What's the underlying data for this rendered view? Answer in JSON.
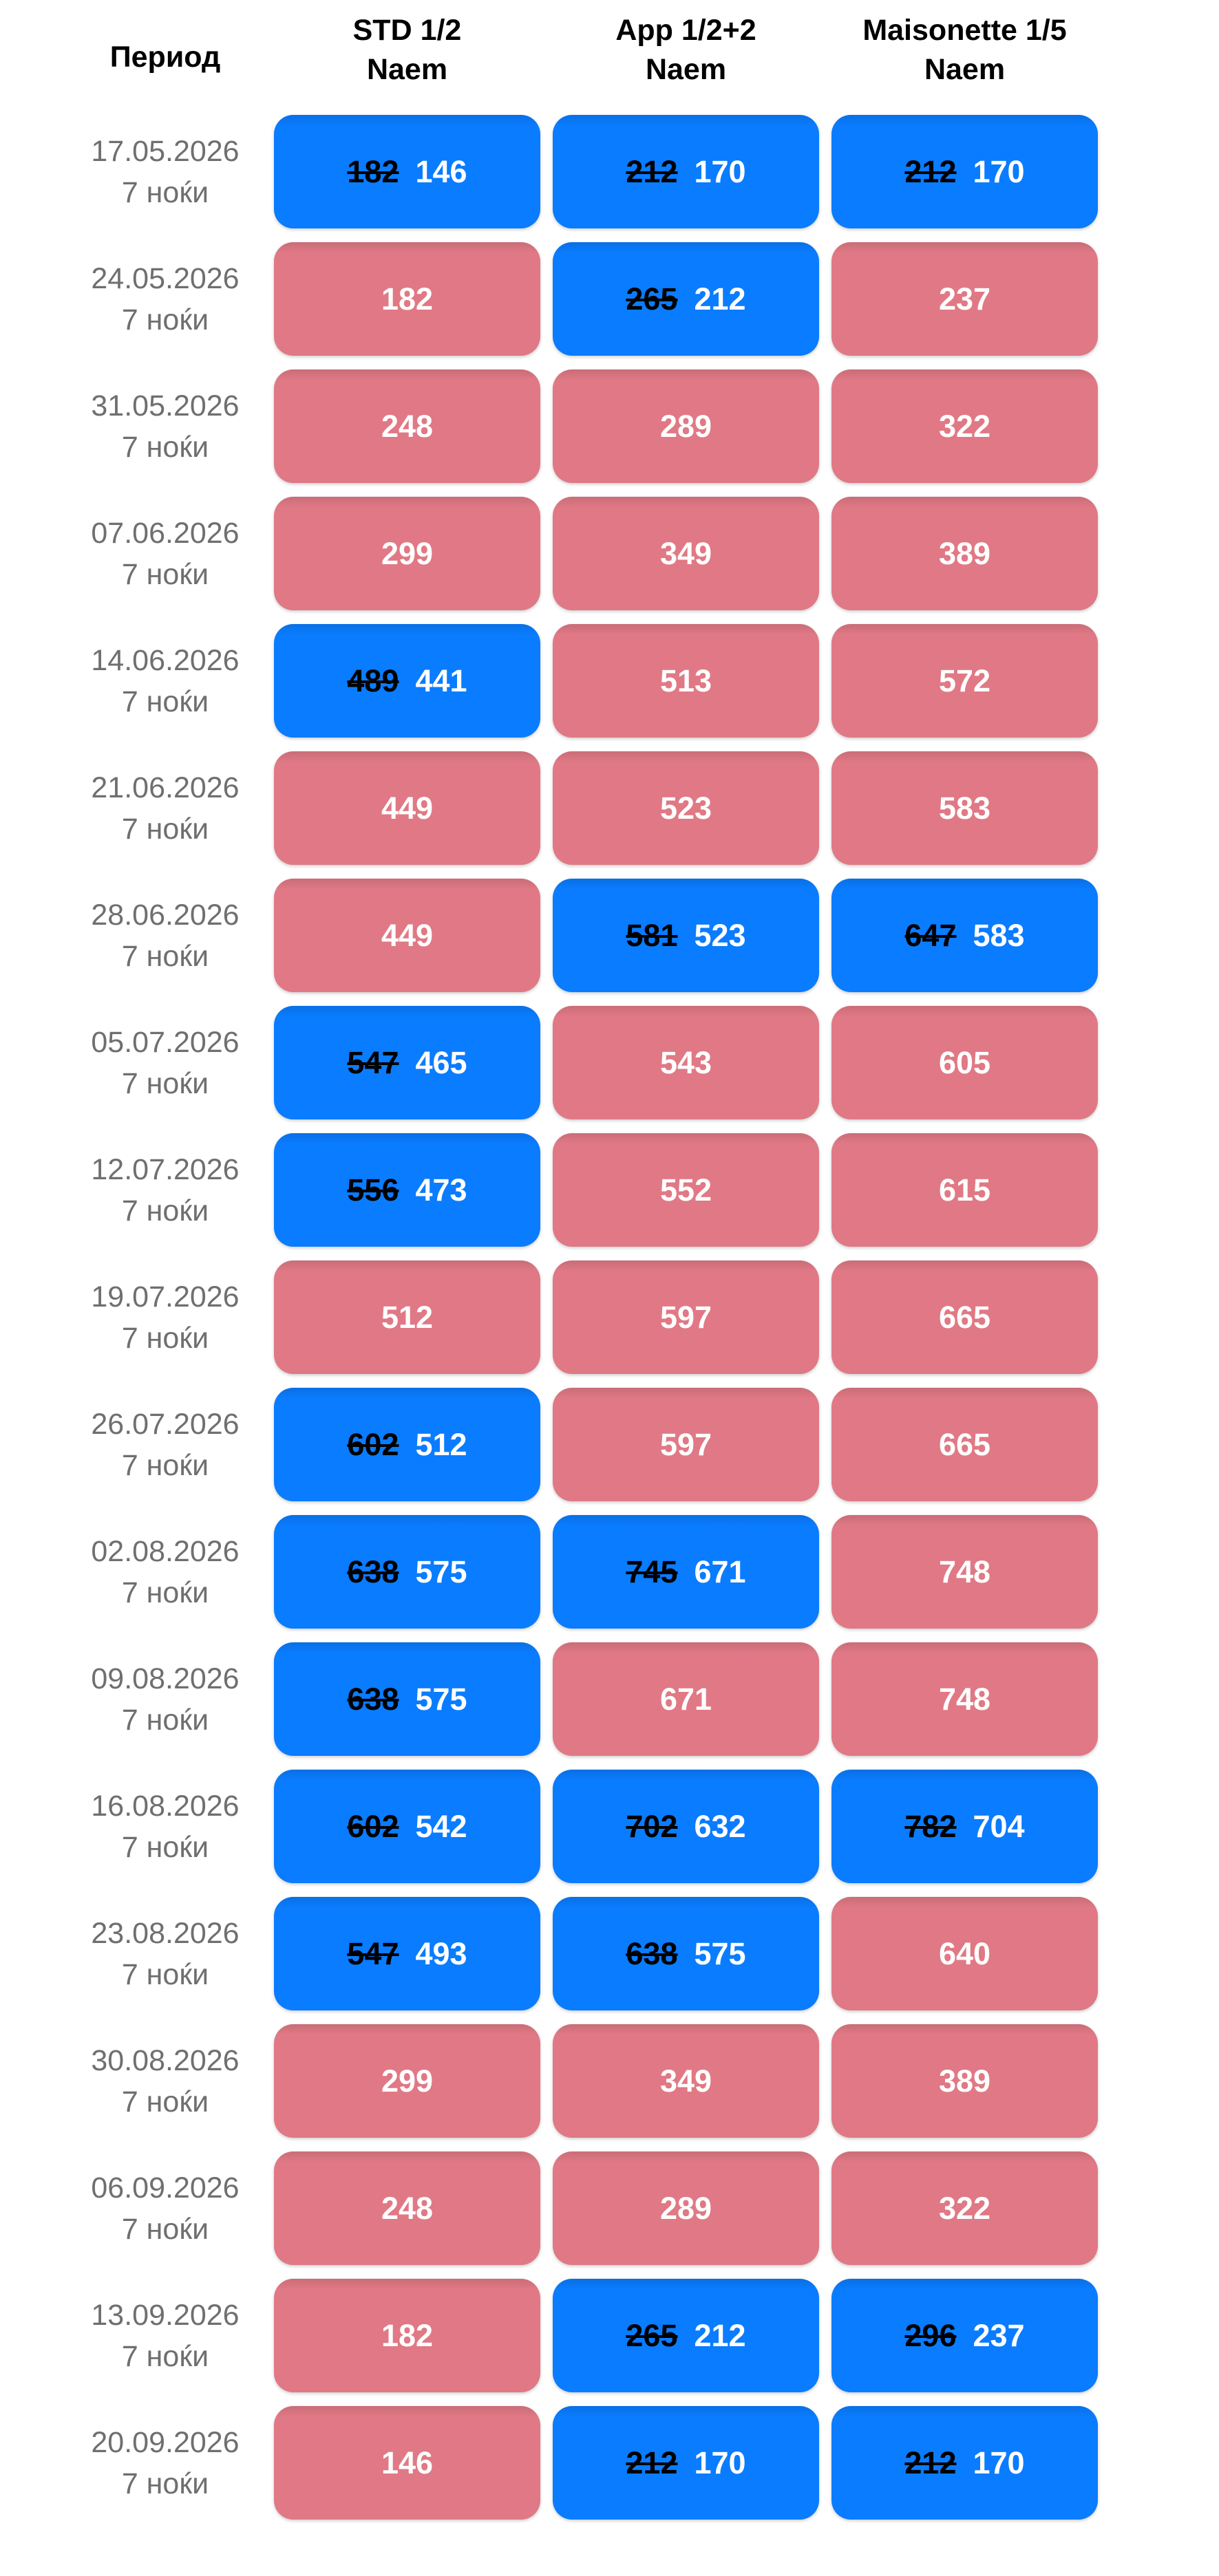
{
  "header": {
    "period_label": "Период",
    "columns": [
      {
        "title": "STD 1/2",
        "subtitle": "Naem"
      },
      {
        "title": "App 1/2+2",
        "subtitle": "Naem"
      },
      {
        "title": "Maisonette 1/5",
        "subtitle": "Naem"
      }
    ]
  },
  "colors": {
    "background": "#ffffff",
    "header_text": "#000000",
    "date_text": "#6f6f6f",
    "discount_cell_bg": "#0a7cff",
    "regular_cell_bg": "#e07985",
    "old_price_text": "#000000",
    "price_text": "#ffffff"
  },
  "rows": [
    {
      "date": "17.05.2026",
      "nights": "7 ноќи",
      "cells": [
        {
          "old": "182",
          "price": "146"
        },
        {
          "old": "212",
          "price": "170"
        },
        {
          "old": "212",
          "price": "170"
        }
      ]
    },
    {
      "date": "24.05.2026",
      "nights": "7 ноќи",
      "cells": [
        {
          "price": "182"
        },
        {
          "old": "265",
          "price": "212"
        },
        {
          "price": "237"
        }
      ]
    },
    {
      "date": "31.05.2026",
      "nights": "7 ноќи",
      "cells": [
        {
          "price": "248"
        },
        {
          "price": "289"
        },
        {
          "price": "322"
        }
      ]
    },
    {
      "date": "07.06.2026",
      "nights": "7 ноќи",
      "cells": [
        {
          "price": "299"
        },
        {
          "price": "349"
        },
        {
          "price": "389"
        }
      ]
    },
    {
      "date": "14.06.2026",
      "nights": "7 ноќи",
      "cells": [
        {
          "old": "489",
          "price": "441"
        },
        {
          "price": "513"
        },
        {
          "price": "572"
        }
      ]
    },
    {
      "date": "21.06.2026",
      "nights": "7 ноќи",
      "cells": [
        {
          "price": "449"
        },
        {
          "price": "523"
        },
        {
          "price": "583"
        }
      ]
    },
    {
      "date": "28.06.2026",
      "nights": "7 ноќи",
      "cells": [
        {
          "price": "449"
        },
        {
          "old": "581",
          "price": "523"
        },
        {
          "old": "647",
          "price": "583"
        }
      ]
    },
    {
      "date": "05.07.2026",
      "nights": "7 ноќи",
      "cells": [
        {
          "old": "547",
          "price": "465"
        },
        {
          "price": "543"
        },
        {
          "price": "605"
        }
      ]
    },
    {
      "date": "12.07.2026",
      "nights": "7 ноќи",
      "cells": [
        {
          "old": "556",
          "price": "473"
        },
        {
          "price": "552"
        },
        {
          "price": "615"
        }
      ]
    },
    {
      "date": "19.07.2026",
      "nights": "7 ноќи",
      "cells": [
        {
          "price": "512"
        },
        {
          "price": "597"
        },
        {
          "price": "665"
        }
      ]
    },
    {
      "date": "26.07.2026",
      "nights": "7 ноќи",
      "cells": [
        {
          "old": "602",
          "price": "512"
        },
        {
          "price": "597"
        },
        {
          "price": "665"
        }
      ]
    },
    {
      "date": "02.08.2026",
      "nights": "7 ноќи",
      "cells": [
        {
          "old": "638",
          "price": "575"
        },
        {
          "old": "745",
          "price": "671"
        },
        {
          "price": "748"
        }
      ]
    },
    {
      "date": "09.08.2026",
      "nights": "7 ноќи",
      "cells": [
        {
          "old": "638",
          "price": "575"
        },
        {
          "price": "671"
        },
        {
          "price": "748"
        }
      ]
    },
    {
      "date": "16.08.2026",
      "nights": "7 ноќи",
      "cells": [
        {
          "old": "602",
          "price": "542"
        },
        {
          "old": "702",
          "price": "632"
        },
        {
          "old": "782",
          "price": "704"
        }
      ]
    },
    {
      "date": "23.08.2026",
      "nights": "7 ноќи",
      "cells": [
        {
          "old": "547",
          "price": "493"
        },
        {
          "old": "638",
          "price": "575"
        },
        {
          "price": "640"
        }
      ]
    },
    {
      "date": "30.08.2026",
      "nights": "7 ноќи",
      "cells": [
        {
          "price": "299"
        },
        {
          "price": "349"
        },
        {
          "price": "389"
        }
      ]
    },
    {
      "date": "06.09.2026",
      "nights": "7 ноќи",
      "cells": [
        {
          "price": "248"
        },
        {
          "price": "289"
        },
        {
          "price": "322"
        }
      ]
    },
    {
      "date": "13.09.2026",
      "nights": "7 ноќи",
      "cells": [
        {
          "price": "182"
        },
        {
          "old": "265",
          "price": "212"
        },
        {
          "old": "296",
          "price": "237"
        }
      ]
    },
    {
      "date": "20.09.2026",
      "nights": "7 ноќи",
      "cells": [
        {
          "price": "146"
        },
        {
          "old": "212",
          "price": "170"
        },
        {
          "old": "212",
          "price": "170"
        }
      ]
    }
  ]
}
